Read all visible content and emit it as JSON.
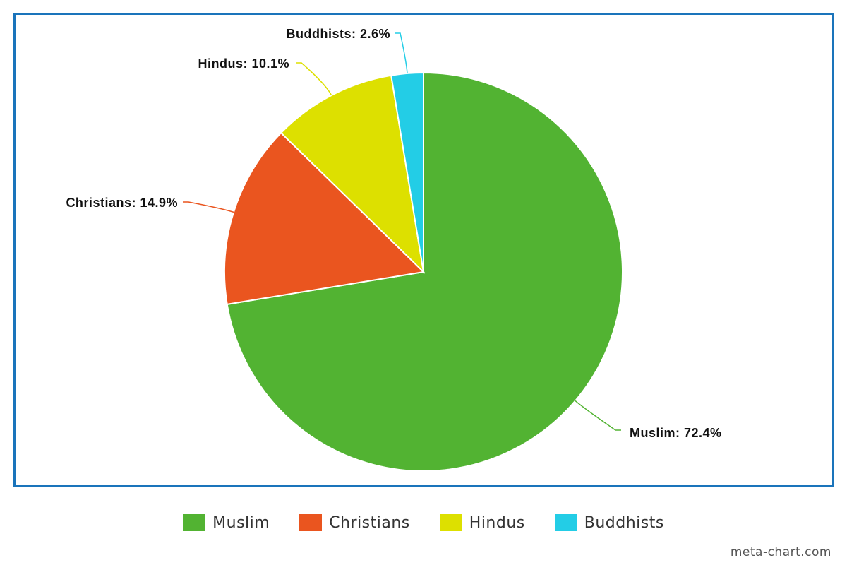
{
  "chart_data": {
    "type": "pie",
    "title": "",
    "slices": [
      {
        "name": "Muslim",
        "value": 72.4,
        "label": "Muslim: 72.4%",
        "color": "#52b332"
      },
      {
        "name": "Christians",
        "value": 14.9,
        "label": "Christians: 14.9%",
        "color": "#ea551f"
      },
      {
        "name": "Hindus",
        "value": 10.1,
        "label": "Hindus: 10.1%",
        "color": "#dde000"
      },
      {
        "name": "Buddhists",
        "value": 2.6,
        "label": "Buddhists: 2.6%",
        "color": "#23cde6"
      }
    ],
    "legend_position": "bottom"
  },
  "legend": {
    "items": [
      {
        "label": "Muslim",
        "color": "#52b332"
      },
      {
        "label": "Christians",
        "color": "#ea551f"
      },
      {
        "label": "Hindus",
        "color": "#dde000"
      },
      {
        "label": "Buddhists",
        "color": "#23cde6"
      }
    ]
  },
  "frame_color": "#1a74bb",
  "watermark": "meta-chart.com"
}
